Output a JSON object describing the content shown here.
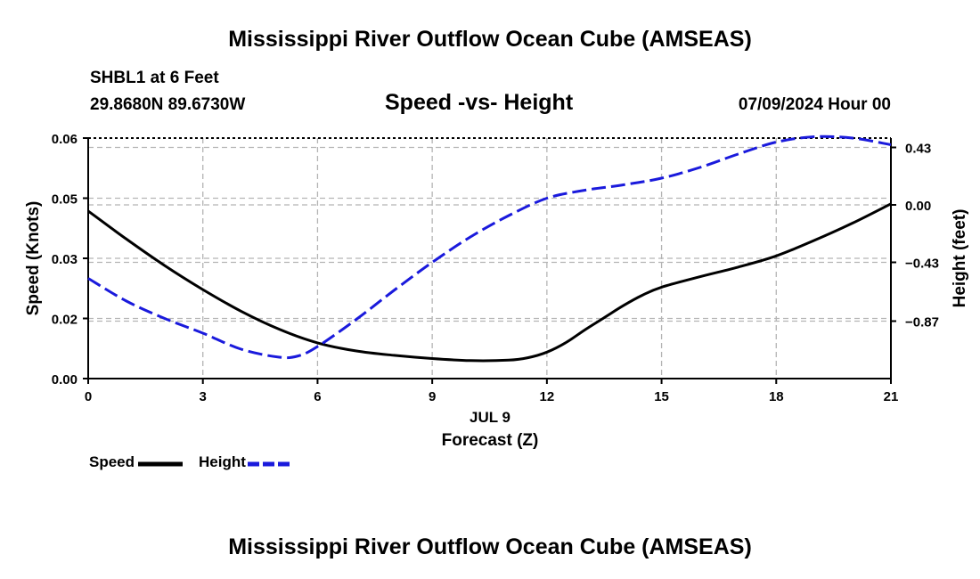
{
  "header": {
    "title": "Mississippi River Outflow Ocean Cube (AMSEAS)",
    "station": "SHBL1 at 6 Feet",
    "coords": "29.8680N  89.6730W",
    "subtitle": "Speed -vs- Height",
    "datetime": "07/09/2024 Hour 00"
  },
  "footer": {
    "title": "Mississippi River Outflow Ocean Cube (AMSEAS)"
  },
  "legend": {
    "speed_label": "Speed",
    "height_label": "Height"
  },
  "colors": {
    "speed": "#000000",
    "height": "#1a1adc",
    "grid": "#b4b4b4"
  },
  "chart_data": {
    "type": "line",
    "title": "Speed -vs- Height",
    "xlabel": "Forecast (Z)",
    "xlabel_date": "JUL 9",
    "ylabel": "Speed (Knots)",
    "y2label": "Height (feet)",
    "xlim": [
      0,
      21
    ],
    "ylim": [
      0,
      0.06
    ],
    "y2lim": [
      -1.3,
      0.5
    ],
    "xticks": [
      0,
      3,
      6,
      9,
      12,
      15,
      18,
      21
    ],
    "xtick_labels": [
      "0",
      "3",
      "6",
      "9",
      "12",
      "15",
      "18",
      "21"
    ],
    "yticks": [
      0,
      0.015,
      0.03,
      0.045,
      0.06
    ],
    "ytick_labels": [
      "0.00",
      "0.02",
      "0.03",
      "0.05",
      "0.06"
    ],
    "y2ticks": [
      0.43,
      0.0,
      -0.43,
      -0.87
    ],
    "y2tick_labels": [
      "0.43",
      "0.00",
      "−0.43",
      "−0.87"
    ],
    "grid": true,
    "series": [
      {
        "name": "Speed",
        "axis": "left",
        "style": "solid",
        "x": [
          0,
          1,
          2,
          3,
          4,
          5,
          6,
          7,
          8,
          9,
          10,
          11,
          11.5,
          12,
          12.5,
          13,
          13.5,
          14,
          14.5,
          15,
          16,
          17,
          18,
          19,
          20,
          21
        ],
        "y": [
          0.0418,
          0.0348,
          0.0282,
          0.0222,
          0.0168,
          0.0123,
          0.0089,
          0.0069,
          0.0058,
          0.005,
          0.0045,
          0.0046,
          0.0052,
          0.0066,
          0.009,
          0.0122,
          0.0152,
          0.0182,
          0.0208,
          0.0228,
          0.0254,
          0.0278,
          0.0306,
          0.0345,
          0.0388,
          0.0436
        ]
      },
      {
        "name": "Height",
        "axis": "right",
        "style": "dashed",
        "x": [
          0,
          1,
          2,
          3,
          4,
          5,
          5.5,
          6,
          7,
          8,
          9,
          10,
          11,
          12,
          13,
          14,
          15,
          16,
          17,
          18,
          19,
          20,
          21
        ],
        "y": [
          -0.55,
          -0.72,
          -0.85,
          -0.96,
          -1.08,
          -1.14,
          -1.13,
          -1.06,
          -0.86,
          -0.64,
          -0.43,
          -0.24,
          -0.08,
          0.05,
          0.11,
          0.15,
          0.2,
          0.28,
          0.38,
          0.47,
          0.51,
          0.5,
          0.45
        ]
      }
    ]
  }
}
